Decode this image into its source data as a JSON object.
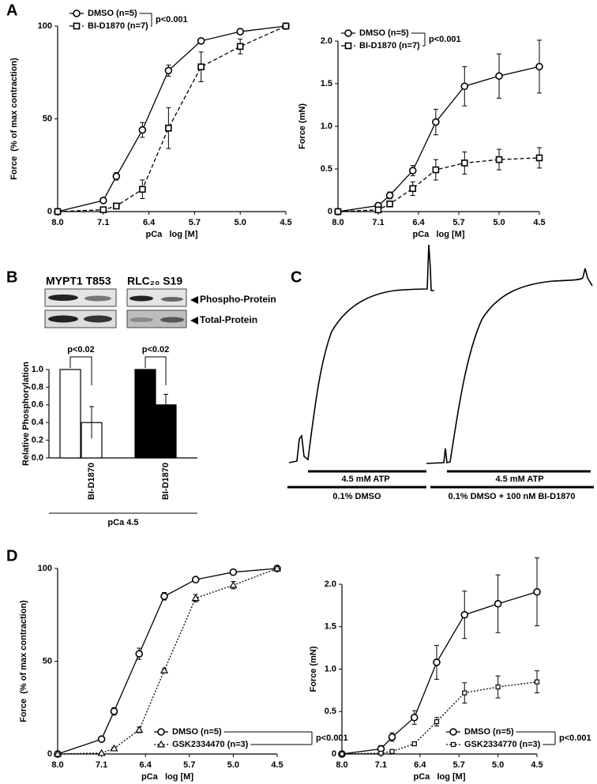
{
  "panel_labels": [
    "A",
    "B",
    "C",
    "D"
  ],
  "blots": {
    "targets": [
      "MYPT1 T853",
      "RLC₂₀ S19"
    ],
    "rows": [
      "Phospho-Protein",
      "Total-Protein"
    ]
  },
  "traces": {
    "atp": [
      "4.5 mM ATP",
      "4.5 mM ATP"
    ],
    "conditions": [
      "0.1% DMSO",
      "0.1% DMSO + 100 nM BI-D1870"
    ]
  },
  "chart_data": [
    {
      "type": "line",
      "xlabel": "pCa   log [M]",
      "ylabel": "Force  (% of max contraction)",
      "x": [
        8.0,
        7.1,
        6.9,
        6.5,
        6.1,
        5.6,
        5.0,
        4.5
      ],
      "xticks": [
        {
          "value": 8,
          "label": "8.0"
        },
        7.1,
        6.4,
        5.7,
        {
          "value": 5,
          "label": "5.0"
        },
        4.5
      ],
      "ylim": [
        0,
        100
      ],
      "yticks": [
        0,
        50,
        100
      ],
      "annotation": "p<0.001",
      "series": [
        {
          "name": "DMSO (n=5)",
          "color": "#000000",
          "marker": "circle",
          "dash": "solid",
          "values": [
            0,
            6,
            19,
            44,
            76,
            92,
            97,
            100
          ],
          "errors": [
            0,
            1,
            2,
            4,
            3,
            1,
            1,
            0
          ]
        },
        {
          "name": "BI-D1870 (n=7)",
          "color": "#000000",
          "marker": "square",
          "dash": "dashed",
          "values": [
            0,
            1,
            3,
            12,
            45,
            78,
            89,
            100
          ],
          "errors": [
            0,
            0.5,
            1,
            5,
            11,
            8,
            4,
            0
          ]
        }
      ]
    },
    {
      "type": "line",
      "xlabel": "pCa   log [M]",
      "ylabel": "Force (mN)",
      "x": [
        8.0,
        7.1,
        6.9,
        6.5,
        6.1,
        5.6,
        5.0,
        4.5
      ],
      "xticks": [
        {
          "value": 8,
          "label": "8.0"
        },
        7.1,
        6.4,
        5.7,
        {
          "value": 5,
          "label": "5.0"
        },
        4.5
      ],
      "ylim": [
        0,
        2
      ],
      "yticks": [
        0,
        0.5,
        {
          "value": 1,
          "label": "1.0"
        },
        1.5,
        {
          "value": 2,
          "label": "2.0"
        }
      ],
      "annotation": "p<0.001",
      "series": [
        {
          "name": "DMSO (n=5)",
          "color": "#000000",
          "marker": "circle",
          "dash": "solid",
          "values": [
            0,
            0.07,
            0.19,
            0.48,
            1.05,
            1.47,
            1.59,
            1.7
          ],
          "errors": [
            0,
            0.02,
            0.04,
            0.06,
            0.15,
            0.23,
            0.26,
            0.31
          ]
        },
        {
          "name": "BI-D1870 (n=7)",
          "color": "#000000",
          "marker": "square",
          "dash": "dashed",
          "values": [
            0,
            0.02,
            0.09,
            0.27,
            0.49,
            0.57,
            0.61,
            0.63
          ],
          "errors": [
            0,
            0.01,
            0.03,
            0.08,
            0.12,
            0.13,
            0.12,
            0.12
          ]
        }
      ]
    },
    {
      "type": "bar",
      "xlabel": "pCa 4.5",
      "ylabel": "Relative Phosphorylation",
      "categories": [
        null,
        "BI-D1870",
        null,
        "BI-D1870"
      ],
      "values": [
        1.0,
        0.4,
        1.0,
        0.6
      ],
      "errors": [
        0,
        0.18,
        0,
        0.12
      ],
      "colors": [
        "#ffffff",
        "#ffffff",
        "#000000",
        "#000000"
      ],
      "ylim": [
        0,
        1
      ],
      "yticks": [
        {
          "value": 0,
          "label": "0.0"
        },
        0.2,
        0.4,
        0.6,
        0.8,
        {
          "value": 1,
          "label": "1.0"
        }
      ],
      "annotations": [
        "p<0.02",
        "p<0.02"
      ]
    },
    {
      "type": "line",
      "xlabel": "pCa   log [M]",
      "ylabel": "Force  (% of max contraction)",
      "x": [
        8.0,
        7.1,
        6.9,
        6.5,
        6.1,
        5.6,
        5.0,
        4.5
      ],
      "xticks": [
        {
          "value": 8,
          "label": "8.0"
        },
        7.1,
        6.4,
        5.7,
        {
          "value": 5,
          "label": "5.0"
        },
        4.5
      ],
      "ylim": [
        0,
        100
      ],
      "yticks": [
        0,
        50,
        100
      ],
      "annotation": "p<0.001",
      "series": [
        {
          "name": "DMSO (n=5)",
          "color": "#000000",
          "marker": "circle",
          "dash": "solid",
          "values": [
            0,
            8,
            23,
            54,
            85,
            94,
            98,
            100
          ],
          "errors": [
            0,
            1,
            2,
            3,
            2,
            1,
            1,
            0
          ]
        },
        {
          "name": "GSK2334470 (n=3)",
          "color": "#000000",
          "marker": "triangle",
          "dash": "dotted",
          "values": [
            0,
            0.5,
            3,
            13,
            45,
            84,
            91,
            100
          ],
          "errors": [
            0,
            0,
            0.5,
            1.5,
            1,
            2,
            2,
            0
          ]
        }
      ]
    },
    {
      "type": "line",
      "xlabel": "pCa   log [M]",
      "ylabel": "Force (mN)",
      "x": [
        8.0,
        7.1,
        6.9,
        6.5,
        6.1,
        5.6,
        5.0,
        4.5
      ],
      "xticks": [
        {
          "value": 8,
          "label": "8.0"
        },
        7.1,
        6.4,
        5.7,
        {
          "value": 5,
          "label": "5.0"
        },
        4.5
      ],
      "ylim": [
        0,
        2
      ],
      "yticks": [
        0,
        0.5,
        {
          "value": 1,
          "label": "1.0"
        },
        1.5,
        {
          "value": 2,
          "label": "2.0"
        }
      ],
      "annotation": "p<0.001",
      "series": [
        {
          "name": "DMSO (n=5)",
          "color": "#000000",
          "marker": "circle",
          "dash": "solid",
          "values": [
            0,
            0.06,
            0.2,
            0.43,
            1.08,
            1.64,
            1.77,
            1.91
          ],
          "errors": [
            0,
            0.04,
            0.05,
            0.08,
            0.2,
            0.28,
            0.34,
            0.4
          ]
        },
        {
          "name": "GSK2334770 (n=3)",
          "color": "#000000",
          "marker": "smallsquare",
          "dash": "dotted",
          "values": [
            0,
            0.01,
            0.03,
            0.12,
            0.38,
            0.72,
            0.79,
            0.85
          ],
          "errors": [
            0,
            0,
            0.01,
            0.01,
            0.05,
            0.12,
            0.13,
            0.13
          ]
        }
      ]
    }
  ]
}
